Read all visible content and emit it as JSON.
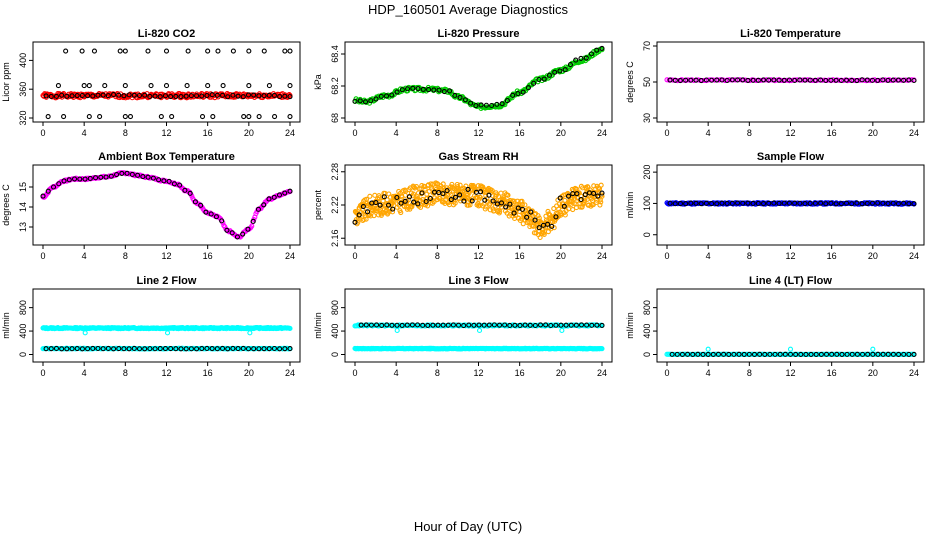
{
  "figure_title": "HDP_160501  Average Diagnostics",
  "x_axis_label": "Hour of Day (UTC)",
  "colors": {
    "black": "#000000",
    "red": "#ff0000",
    "magenta": "#ff00ff",
    "green": "#00cc00",
    "orange": "#ffa500",
    "blue": "#0000ff",
    "cyan": "#00ffff"
  },
  "chart_data": [
    {
      "id": "co2",
      "type": "scatter",
      "title": "Li-820 CO2",
      "ylabel": "Licor ppm",
      "xlim": [
        0,
        24
      ],
      "ylim": [
        320,
        420
      ],
      "xticks": [
        0,
        4,
        8,
        12,
        16,
        20,
        24
      ],
      "yticks": [
        320,
        360,
        400
      ],
      "series": [
        {
          "name": "red",
          "color": "red",
          "gen": "noise",
          "base": 351,
          "amp": 3,
          "n": 300,
          "x0": 0,
          "x1": 24,
          "seed": 1
        },
        {
          "name": "black",
          "color": "black",
          "gen": "noise",
          "base": 351,
          "amp": 1.5,
          "n": 48,
          "x0": 0.3,
          "x1": 24,
          "seed": 2
        },
        {
          "name": "black-high",
          "color": "black",
          "x": [
            2.2,
            3.8,
            5.0,
            7.5,
            8.0,
            10.2,
            12.0,
            14.1,
            16.0,
            17.0,
            18.5,
            20.0,
            21.5,
            23.5,
            24.0
          ],
          "y": [
            413,
            413,
            413,
            413,
            413,
            413,
            413,
            413,
            413,
            413,
            413,
            413,
            413,
            413,
            413
          ]
        },
        {
          "name": "black-low",
          "color": "black",
          "x": [
            0.5,
            2.0,
            4.5,
            5.5,
            8.0,
            8.5,
            11.5,
            12.5,
            15.5,
            16.5,
            19.5,
            20.0,
            21.0,
            22.5,
            24.0
          ],
          "y": [
            322,
            322,
            322,
            322,
            322,
            322,
            322,
            322,
            322,
            322,
            322,
            322,
            322,
            322,
            322
          ]
        },
        {
          "name": "black-mid",
          "color": "black",
          "x": [
            1.5,
            4.0,
            4.5,
            6.0,
            8.0,
            10.5,
            12.0,
            14.0,
            16.0,
            17.5,
            20.0,
            22.0,
            24.0
          ],
          "y": [
            365,
            365,
            365,
            365,
            365,
            365,
            365,
            365,
            365,
            365,
            365,
            365,
            365
          ]
        }
      ]
    },
    {
      "id": "pressure",
      "type": "scatter",
      "title": "Li-820 Pressure",
      "ylabel": "kPa",
      "xlim": [
        0,
        24
      ],
      "ylim": [
        68.0,
        68.45
      ],
      "xticks": [
        0,
        4,
        8,
        12,
        16,
        20,
        24
      ],
      "yticks": [
        68.0,
        68.2,
        68.4
      ],
      "series": [
        {
          "name": "green",
          "color": "green",
          "gen": "curve",
          "kx": [
            0,
            1,
            3,
            5,
            7,
            9,
            10,
            12,
            14,
            16,
            18,
            20,
            22,
            24
          ],
          "ky": [
            68.11,
            68.1,
            68.14,
            68.18,
            68.18,
            68.17,
            68.13,
            68.07,
            68.08,
            68.16,
            68.24,
            68.3,
            68.36,
            68.43
          ],
          "jit": 0.012,
          "n": 240,
          "seed": 3
        },
        {
          "name": "black",
          "color": "black",
          "gen": "curve",
          "kx": [
            0,
            1,
            3,
            5,
            7,
            9,
            10,
            12,
            14,
            16,
            18,
            20,
            22,
            24
          ],
          "ky": [
            68.11,
            68.1,
            68.14,
            68.18,
            68.18,
            68.17,
            68.13,
            68.08,
            68.08,
            68.16,
            68.24,
            68.3,
            68.37,
            68.44
          ],
          "jit": 0.006,
          "n": 48,
          "seed": 4
        }
      ]
    },
    {
      "id": "temp820",
      "type": "scatter",
      "title": "Li-820 Temperature",
      "ylabel": "degrees C",
      "xlim": [
        0,
        24
      ],
      "ylim": [
        30,
        70
      ],
      "xticks": [
        0,
        4,
        8,
        12,
        16,
        20,
        24
      ],
      "yticks": [
        30,
        50,
        70
      ],
      "series": [
        {
          "name": "magenta",
          "color": "magenta",
          "gen": "noise",
          "base": 51,
          "amp": 0.3,
          "n": 120,
          "x0": 0,
          "x1": 24,
          "seed": 5
        },
        {
          "name": "black",
          "color": "black",
          "gen": "noise",
          "base": 51,
          "amp": 0.2,
          "n": 48,
          "x0": 0.3,
          "x1": 24,
          "seed": 6
        }
      ]
    },
    {
      "id": "boxtemp",
      "type": "scatter",
      "title": "Ambient Box Temperature",
      "ylabel": "degrees C",
      "xlim": [
        0,
        24
      ],
      "ylim": [
        12.3,
        15.9
      ],
      "xticks": [
        0,
        4,
        8,
        12,
        16,
        20,
        24
      ],
      "yticks": [
        13,
        14,
        15
      ],
      "series": [
        {
          "name": "magenta",
          "color": "magenta",
          "gen": "curve",
          "kx": [
            0,
            1,
            2,
            3,
            4,
            6,
            8,
            9,
            10,
            12,
            13,
            14,
            15,
            16,
            17,
            18,
            19,
            20,
            21,
            22,
            23,
            24
          ],
          "ky": [
            14.5,
            15.0,
            15.3,
            15.4,
            15.4,
            15.5,
            15.7,
            15.6,
            15.5,
            15.3,
            15.15,
            14.8,
            14.2,
            13.7,
            13.5,
            12.8,
            12.5,
            12.9,
            13.9,
            14.4,
            14.6,
            14.8
          ],
          "jit": 0.04,
          "n": 240,
          "seed": 7
        },
        {
          "name": "black",
          "color": "black",
          "gen": "curve",
          "kx": [
            0,
            1,
            2,
            3,
            4,
            6,
            8,
            9,
            10,
            12,
            13,
            14,
            15,
            16,
            17,
            18,
            19,
            20,
            21,
            22,
            23,
            24
          ],
          "ky": [
            14.55,
            15.0,
            15.3,
            15.4,
            15.4,
            15.5,
            15.7,
            15.6,
            15.5,
            15.3,
            15.15,
            14.8,
            14.2,
            13.7,
            13.5,
            12.8,
            12.5,
            12.9,
            13.9,
            14.4,
            14.6,
            14.8
          ],
          "jit": 0.01,
          "n": 48,
          "seed": 8
        }
      ]
    },
    {
      "id": "rh",
      "type": "scatter",
      "title": "Gas Stream RH",
      "ylabel": "percent",
      "xlim": [
        0,
        24
      ],
      "ylim": [
        2.155,
        2.285
      ],
      "xticks": [
        0,
        4,
        8,
        12,
        16,
        20,
        24
      ],
      "yticks": [
        2.16,
        2.22,
        2.28
      ],
      "series": [
        {
          "name": "orange",
          "color": "orange",
          "gen": "curve",
          "kx": [
            0,
            2,
            4,
            6,
            8,
            10,
            12,
            14,
            16,
            17,
            18,
            19,
            20,
            22,
            24
          ],
          "ky": [
            2.2,
            2.22,
            2.225,
            2.235,
            2.24,
            2.24,
            2.235,
            2.225,
            2.21,
            2.195,
            2.18,
            2.19,
            2.22,
            2.235,
            2.24
          ],
          "jit": 0.02,
          "n": 600,
          "seed": 9
        },
        {
          "name": "black",
          "color": "black",
          "gen": "curve",
          "kx": [
            0,
            2,
            4,
            6,
            8,
            10,
            12,
            14,
            16,
            17,
            18,
            19,
            20,
            22,
            24
          ],
          "ky": [
            2.2,
            2.22,
            2.225,
            2.235,
            2.24,
            2.24,
            2.235,
            2.225,
            2.21,
            2.195,
            2.175,
            2.19,
            2.22,
            2.235,
            2.235
          ],
          "jit": 0.013,
          "n": 60,
          "seed": 10
        }
      ]
    },
    {
      "id": "sampleflow",
      "type": "scatter",
      "title": "Sample Flow",
      "ylabel": "ml/min",
      "xlim": [
        0,
        24
      ],
      "ylim": [
        -20,
        210
      ],
      "xticks": [
        0,
        4,
        8,
        12,
        16,
        20,
        24
      ],
      "yticks": [
        0,
        100,
        200
      ],
      "series": [
        {
          "name": "blue",
          "color": "blue",
          "gen": "noise",
          "base": 100,
          "amp": 2.5,
          "n": 300,
          "x0": 0,
          "x1": 24,
          "seed": 11
        },
        {
          "name": "black",
          "color": "black",
          "gen": "noise",
          "base": 100,
          "amp": 1.2,
          "n": 48,
          "x0": 0.3,
          "x1": 24,
          "seed": 12
        }
      ]
    },
    {
      "id": "line2",
      "type": "scatter",
      "title": "Line 2 Flow",
      "ylabel": "ml/min",
      "xlim": [
        0,
        24
      ],
      "ylim": [
        -60,
        1050
      ],
      "xticks": [
        0,
        4,
        8,
        12,
        16,
        20,
        24
      ],
      "yticks": [
        0,
        400,
        800
      ],
      "series": [
        {
          "name": "cyan-high",
          "color": "cyan",
          "gen": "noise",
          "base": 450,
          "amp": 10,
          "n": 300,
          "x0": 0,
          "x1": 24,
          "seed": 13
        },
        {
          "name": "cyan-low",
          "color": "cyan",
          "gen": "noise",
          "base": 100,
          "amp": 5,
          "n": 300,
          "x0": 0,
          "x1": 24,
          "seed": 14
        },
        {
          "name": "cyan-dips",
          "color": "cyan",
          "x": [
            4.1,
            12.1,
            20.1
          ],
          "y": [
            370,
            370,
            370
          ]
        },
        {
          "name": "black",
          "color": "black",
          "gen": "noise",
          "base": 100,
          "amp": 3,
          "n": 48,
          "x0": 0.3,
          "x1": 24,
          "seed": 15
        }
      ]
    },
    {
      "id": "line3",
      "type": "scatter",
      "title": "Line 3 Flow",
      "ylabel": "ml/min",
      "xlim": [
        0,
        24
      ],
      "ylim": [
        -60,
        1050
      ],
      "xticks": [
        0,
        4,
        8,
        12,
        16,
        20,
        24
      ],
      "yticks": [
        0,
        400,
        800
      ],
      "series": [
        {
          "name": "cyan-high",
          "color": "cyan",
          "gen": "noise",
          "base": 495,
          "amp": 10,
          "n": 240,
          "x0": 0,
          "x1": 24,
          "seed": 16
        },
        {
          "name": "cyan-low",
          "color": "cyan",
          "gen": "noise",
          "base": 100,
          "amp": 5,
          "n": 300,
          "x0": 0,
          "x1": 24,
          "seed": 17
        },
        {
          "name": "cyan-dips",
          "color": "cyan",
          "x": [
            4.1,
            12.1,
            20.1
          ],
          "y": [
            410,
            410,
            410
          ]
        },
        {
          "name": "black",
          "color": "black",
          "gen": "noise",
          "base": 500,
          "amp": 6,
          "n": 48,
          "x0": 0.6,
          "x1": 24,
          "seed": 18
        }
      ]
    },
    {
      "id": "line4",
      "type": "scatter",
      "title": "Line 4 (LT) Flow",
      "ylabel": "ml/min",
      "xlim": [
        0,
        24
      ],
      "ylim": [
        -60,
        1050
      ],
      "xticks": [
        0,
        4,
        8,
        12,
        16,
        20,
        24
      ],
      "yticks": [
        0,
        400,
        800
      ],
      "series": [
        {
          "name": "cyan",
          "color": "cyan",
          "gen": "noise",
          "base": 2,
          "amp": 2,
          "n": 200,
          "x0": 0,
          "x1": 24,
          "seed": 19
        },
        {
          "name": "cyan-spikes",
          "color": "cyan",
          "x": [
            4.0,
            12.0,
            20.0
          ],
          "y": [
            90,
            90,
            90
          ]
        },
        {
          "name": "black",
          "color": "black",
          "gen": "noise",
          "base": 2,
          "amp": 1,
          "n": 48,
          "x0": 0.5,
          "x1": 24,
          "seed": 20
        }
      ]
    }
  ]
}
